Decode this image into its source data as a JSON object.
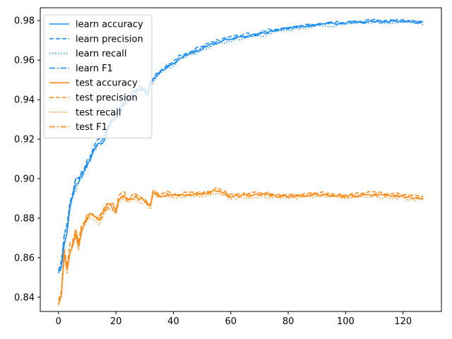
{
  "chart_data": {
    "type": "line",
    "title": "",
    "xlabel": "",
    "ylabel": "",
    "xlim": [
      -6.35,
      133.35
    ],
    "ylim": [
      0.8328,
      0.9865
    ],
    "xticks": [
      0,
      20,
      40,
      60,
      80,
      100,
      120
    ],
    "yticks": [
      0.84,
      0.86,
      0.88,
      0.9,
      0.92,
      0.94,
      0.96,
      0.98
    ],
    "grid": false,
    "legend_position": "top-left",
    "colors": {
      "learn": "#1f8ef1",
      "test": "#ff8c1a"
    },
    "x_range": [
      0,
      127
    ],
    "series": [
      {
        "name": "learn accuracy",
        "group": "learn",
        "style": "solid",
        "anchors": [
          [
            0,
            0.852
          ],
          [
            1,
            0.855
          ],
          [
            2,
            0.868
          ],
          [
            3,
            0.873
          ],
          [
            4,
            0.886
          ],
          [
            5,
            0.892
          ],
          [
            6,
            0.896
          ],
          [
            7,
            0.899
          ],
          [
            8,
            0.902
          ],
          [
            10,
            0.907
          ],
          [
            12,
            0.914
          ],
          [
            14,
            0.918
          ],
          [
            16,
            0.92
          ],
          [
            18,
            0.928
          ],
          [
            20,
            0.932
          ],
          [
            22,
            0.936
          ],
          [
            25,
            0.942
          ],
          [
            28,
            0.945
          ],
          [
            30,
            0.945
          ],
          [
            31,
            0.942
          ],
          [
            32,
            0.948
          ],
          [
            34,
            0.952
          ],
          [
            38,
            0.957
          ],
          [
            40,
            0.958
          ],
          [
            42,
            0.961
          ],
          [
            45,
            0.963
          ],
          [
            50,
            0.966
          ],
          [
            55,
            0.969
          ],
          [
            60,
            0.971
          ],
          [
            65,
            0.972
          ],
          [
            70,
            0.973
          ],
          [
            75,
            0.975
          ],
          [
            80,
            0.976
          ],
          [
            90,
            0.978
          ],
          [
            100,
            0.979
          ],
          [
            110,
            0.9795
          ],
          [
            120,
            0.9798
          ],
          [
            127,
            0.979
          ]
        ]
      },
      {
        "name": "learn precision",
        "group": "learn",
        "style": "dashed",
        "anchors": [
          [
            0,
            0.855
          ],
          [
            1,
            0.858
          ],
          [
            2,
            0.872
          ],
          [
            3,
            0.878
          ],
          [
            4,
            0.888
          ],
          [
            5,
            0.894
          ],
          [
            6,
            0.902
          ],
          [
            7,
            0.899
          ],
          [
            8,
            0.903
          ],
          [
            10,
            0.908
          ],
          [
            12,
            0.915
          ],
          [
            14,
            0.919
          ],
          [
            16,
            0.921
          ],
          [
            18,
            0.929
          ],
          [
            20,
            0.933
          ],
          [
            22,
            0.937
          ],
          [
            25,
            0.943
          ],
          [
            28,
            0.946
          ],
          [
            30,
            0.946
          ],
          [
            31,
            0.943
          ],
          [
            32,
            0.949
          ],
          [
            34,
            0.953
          ],
          [
            38,
            0.958
          ],
          [
            40,
            0.959
          ],
          [
            42,
            0.962
          ],
          [
            45,
            0.964
          ],
          [
            50,
            0.967
          ],
          [
            55,
            0.97
          ],
          [
            60,
            0.972
          ],
          [
            65,
            0.973
          ],
          [
            70,
            0.974
          ],
          [
            75,
            0.976
          ],
          [
            80,
            0.9765
          ],
          [
            90,
            0.9785
          ],
          [
            100,
            0.9795
          ],
          [
            110,
            0.98
          ],
          [
            120,
            0.98
          ],
          [
            127,
            0.9795
          ]
        ]
      },
      {
        "name": "learn recall",
        "group": "learn",
        "style": "dotted",
        "anchors": [
          [
            0,
            0.852
          ],
          [
            1,
            0.854
          ],
          [
            2,
            0.867
          ],
          [
            3,
            0.872
          ],
          [
            4,
            0.885
          ],
          [
            5,
            0.891
          ],
          [
            6,
            0.895
          ],
          [
            7,
            0.898
          ],
          [
            8,
            0.901
          ],
          [
            10,
            0.906
          ],
          [
            12,
            0.913
          ],
          [
            14,
            0.917
          ],
          [
            16,
            0.919
          ],
          [
            18,
            0.927
          ],
          [
            20,
            0.931
          ],
          [
            22,
            0.935
          ],
          [
            25,
            0.941
          ],
          [
            28,
            0.944
          ],
          [
            30,
            0.944
          ],
          [
            31,
            0.941
          ],
          [
            32,
            0.947
          ],
          [
            34,
            0.951
          ],
          [
            38,
            0.956
          ],
          [
            40,
            0.957
          ],
          [
            42,
            0.96
          ],
          [
            45,
            0.962
          ],
          [
            50,
            0.965
          ],
          [
            55,
            0.968
          ],
          [
            60,
            0.97
          ],
          [
            65,
            0.971
          ],
          [
            70,
            0.972
          ],
          [
            75,
            0.974
          ],
          [
            80,
            0.975
          ],
          [
            90,
            0.977
          ],
          [
            100,
            0.978
          ],
          [
            110,
            0.979
          ],
          [
            120,
            0.979
          ],
          [
            127,
            0.9785
          ]
        ]
      },
      {
        "name": "learn F1",
        "group": "learn",
        "style": "dashdot",
        "anchors": [
          [
            0,
            0.853
          ],
          [
            1,
            0.856
          ],
          [
            2,
            0.87
          ],
          [
            3,
            0.875
          ],
          [
            4,
            0.887
          ],
          [
            5,
            0.893
          ],
          [
            6,
            0.899
          ],
          [
            7,
            0.899
          ],
          [
            8,
            0.902
          ],
          [
            10,
            0.907
          ],
          [
            12,
            0.914
          ],
          [
            14,
            0.918
          ],
          [
            16,
            0.92
          ],
          [
            18,
            0.928
          ],
          [
            20,
            0.932
          ],
          [
            22,
            0.936
          ],
          [
            25,
            0.942
          ],
          [
            28,
            0.945
          ],
          [
            30,
            0.945
          ],
          [
            31,
            0.942
          ],
          [
            32,
            0.948
          ],
          [
            34,
            0.952
          ],
          [
            38,
            0.957
          ],
          [
            40,
            0.958
          ],
          [
            42,
            0.961
          ],
          [
            45,
            0.963
          ],
          [
            50,
            0.966
          ],
          [
            55,
            0.969
          ],
          [
            60,
            0.971
          ],
          [
            65,
            0.972
          ],
          [
            70,
            0.973
          ],
          [
            75,
            0.975
          ],
          [
            80,
            0.976
          ],
          [
            90,
            0.978
          ],
          [
            100,
            0.979
          ],
          [
            110,
            0.9795
          ],
          [
            120,
            0.9798
          ],
          [
            127,
            0.979
          ]
        ]
      },
      {
        "name": "test accuracy",
        "group": "test",
        "style": "solid",
        "anchors": [
          [
            0,
            0.837
          ],
          [
            1,
            0.84
          ],
          [
            2,
            0.862
          ],
          [
            3,
            0.853
          ],
          [
            4,
            0.863
          ],
          [
            5,
            0.867
          ],
          [
            6,
            0.873
          ],
          [
            7,
            0.866
          ],
          [
            8,
            0.874
          ],
          [
            10,
            0.88
          ],
          [
            12,
            0.882
          ],
          [
            14,
            0.879
          ],
          [
            16,
            0.884
          ],
          [
            18,
            0.887
          ],
          [
            20,
            0.884
          ],
          [
            21,
            0.889
          ],
          [
            22,
            0.892
          ],
          [
            24,
            0.89
          ],
          [
            26,
            0.891
          ],
          [
            28,
            0.89
          ],
          [
            30,
            0.889
          ],
          [
            32,
            0.886
          ],
          [
            33,
            0.893
          ],
          [
            35,
            0.891
          ],
          [
            38,
            0.892
          ],
          [
            40,
            0.891
          ],
          [
            45,
            0.892
          ],
          [
            50,
            0.892
          ],
          [
            55,
            0.894
          ],
          [
            60,
            0.891
          ],
          [
            70,
            0.892
          ],
          [
            80,
            0.891
          ],
          [
            90,
            0.892
          ],
          [
            100,
            0.891
          ],
          [
            110,
            0.892
          ],
          [
            120,
            0.891
          ],
          [
            127,
            0.89
          ]
        ]
      },
      {
        "name": "test precision",
        "group": "test",
        "style": "dashed",
        "anchors": [
          [
            0,
            0.838
          ],
          [
            1,
            0.842
          ],
          [
            2,
            0.864
          ],
          [
            3,
            0.855
          ],
          [
            4,
            0.866
          ],
          [
            5,
            0.868
          ],
          [
            6,
            0.875
          ],
          [
            7,
            0.867
          ],
          [
            8,
            0.876
          ],
          [
            10,
            0.881
          ],
          [
            12,
            0.883
          ],
          [
            14,
            0.88
          ],
          [
            16,
            0.885
          ],
          [
            18,
            0.888
          ],
          [
            20,
            0.885
          ],
          [
            21,
            0.89
          ],
          [
            22,
            0.893
          ],
          [
            24,
            0.891
          ],
          [
            26,
            0.892
          ],
          [
            28,
            0.891
          ],
          [
            30,
            0.89
          ],
          [
            32,
            0.887
          ],
          [
            33,
            0.894
          ],
          [
            35,
            0.892
          ],
          [
            38,
            0.893
          ],
          [
            40,
            0.892
          ],
          [
            45,
            0.893
          ],
          [
            50,
            0.893
          ],
          [
            55,
            0.895
          ],
          [
            60,
            0.892
          ],
          [
            70,
            0.893
          ],
          [
            80,
            0.892
          ],
          [
            90,
            0.893
          ],
          [
            100,
            0.892
          ],
          [
            110,
            0.893
          ],
          [
            120,
            0.892
          ],
          [
            127,
            0.891
          ]
        ]
      },
      {
        "name": "test recall",
        "group": "test",
        "style": "dotted",
        "anchors": [
          [
            0,
            0.837
          ],
          [
            1,
            0.84
          ],
          [
            2,
            0.861
          ],
          [
            3,
            0.853
          ],
          [
            4,
            0.862
          ],
          [
            5,
            0.866
          ],
          [
            6,
            0.872
          ],
          [
            7,
            0.865
          ],
          [
            8,
            0.873
          ],
          [
            10,
            0.879
          ],
          [
            12,
            0.881
          ],
          [
            14,
            0.878
          ],
          [
            16,
            0.883
          ],
          [
            18,
            0.886
          ],
          [
            20,
            0.883
          ],
          [
            21,
            0.888
          ],
          [
            22,
            0.891
          ],
          [
            24,
            0.889
          ],
          [
            26,
            0.89
          ],
          [
            28,
            0.889
          ],
          [
            30,
            0.888
          ],
          [
            32,
            0.885
          ],
          [
            33,
            0.892
          ],
          [
            35,
            0.89
          ],
          [
            38,
            0.891
          ],
          [
            40,
            0.89
          ],
          [
            45,
            0.891
          ],
          [
            50,
            0.891
          ],
          [
            55,
            0.893
          ],
          [
            60,
            0.89
          ],
          [
            70,
            0.891
          ],
          [
            80,
            0.89
          ],
          [
            90,
            0.891
          ],
          [
            100,
            0.89
          ],
          [
            110,
            0.891
          ],
          [
            120,
            0.89
          ],
          [
            127,
            0.889
          ]
        ]
      },
      {
        "name": "test F1",
        "group": "test",
        "style": "dashdot",
        "anchors": [
          [
            0,
            0.837
          ],
          [
            1,
            0.841
          ],
          [
            2,
            0.863
          ],
          [
            3,
            0.854
          ],
          [
            4,
            0.864
          ],
          [
            5,
            0.867
          ],
          [
            6,
            0.874
          ],
          [
            7,
            0.866
          ],
          [
            8,
            0.875
          ],
          [
            10,
            0.88
          ],
          [
            12,
            0.882
          ],
          [
            14,
            0.879
          ],
          [
            16,
            0.884
          ],
          [
            18,
            0.887
          ],
          [
            20,
            0.884
          ],
          [
            21,
            0.889
          ],
          [
            22,
            0.892
          ],
          [
            24,
            0.89
          ],
          [
            26,
            0.891
          ],
          [
            28,
            0.89
          ],
          [
            30,
            0.889
          ],
          [
            32,
            0.886
          ],
          [
            33,
            0.893
          ],
          [
            35,
            0.891
          ],
          [
            38,
            0.892
          ],
          [
            40,
            0.891
          ],
          [
            45,
            0.892
          ],
          [
            50,
            0.892
          ],
          [
            55,
            0.894
          ],
          [
            60,
            0.891
          ],
          [
            70,
            0.892
          ],
          [
            80,
            0.891
          ],
          [
            90,
            0.892
          ],
          [
            100,
            0.891
          ],
          [
            110,
            0.892
          ],
          [
            120,
            0.891
          ],
          [
            127,
            0.89
          ]
        ]
      }
    ]
  }
}
